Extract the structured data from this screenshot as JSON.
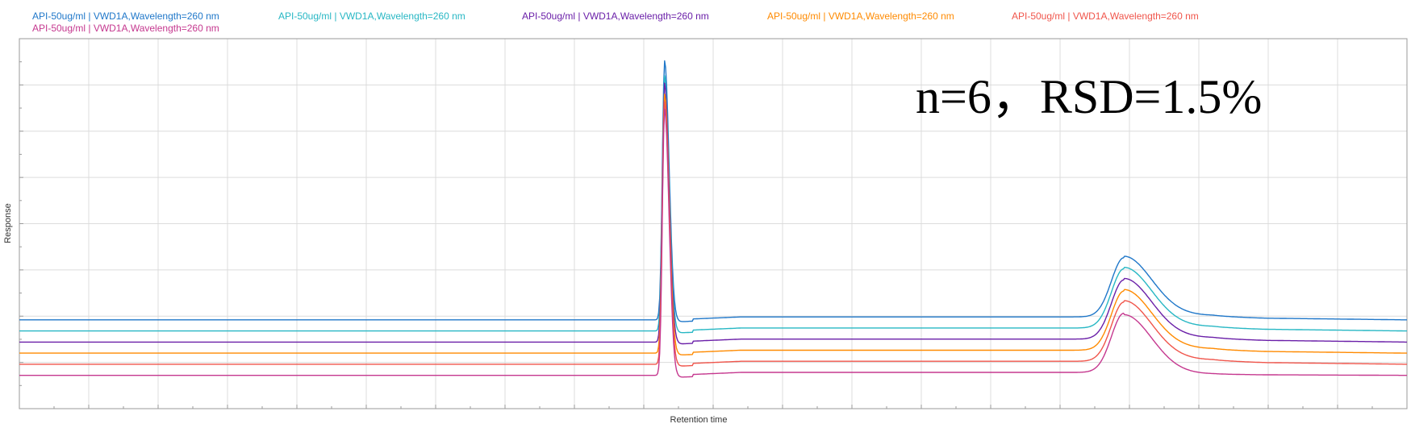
{
  "chart_data": {
    "type": "line",
    "title": "",
    "xlabel": "Retention time",
    "ylabel": "Response",
    "x_ticks_labeled": false,
    "y_ticks_labeled": false,
    "grid": true,
    "legend_placement": "top",
    "annotation": "n=6，RSD=1.5%",
    "series": [
      {
        "name": "API-50ug/ml | VWD1A,Wavelength=260 nm",
        "color": "#1f77c9",
        "baseline": 0.24,
        "peak1_apex": 0.94,
        "peak2_apex": 0.4,
        "tail_after_peak2": 0.27
      },
      {
        "name": "API-50ug/ml | VWD1A,Wavelength=260 nm",
        "color": "#27b7c4",
        "baseline": 0.21,
        "peak1_apex": 0.9,
        "peak2_apex": 0.37,
        "tail_after_peak2": 0.24
      },
      {
        "name": "API-50ug/ml | VWD1A,Wavelength=260 nm",
        "color": "#6a1fa8",
        "baseline": 0.18,
        "peak1_apex": 0.88,
        "peak2_apex": 0.34,
        "tail_after_peak2": 0.21
      },
      {
        "name": "API-50ug/ml | VWD1A,Wavelength=260 nm",
        "color": "#ff8a00",
        "baseline": 0.15,
        "peak1_apex": 0.85,
        "peak2_apex": 0.31,
        "tail_after_peak2": 0.18
      },
      {
        "name": "API-50ug/ml | VWD1A,Wavelength=260 nm",
        "color": "#f0554b",
        "baseline": 0.12,
        "peak1_apex": 0.83,
        "peak2_apex": 0.28,
        "tail_after_peak2": 0.15
      },
      {
        "name": "API-50ug/ml | VWD1A,Wavelength=260 nm",
        "color": "#c5388f",
        "baseline": 0.09,
        "peak1_apex": 0.81,
        "peak2_apex": 0.25,
        "tail_after_peak2": 0.1
      }
    ],
    "peak1_position": 0.465,
    "peak2_position": 0.796
  }
}
